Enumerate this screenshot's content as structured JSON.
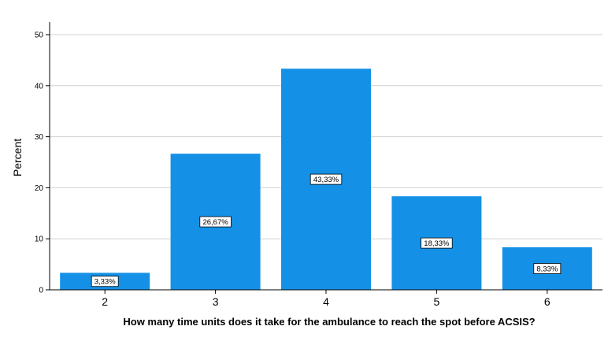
{
  "chart_data": {
    "type": "bar",
    "categories": [
      "2",
      "3",
      "4",
      "5",
      "6"
    ],
    "values": [
      3.33,
      26.67,
      43.33,
      18.33,
      8.33
    ],
    "data_labels": [
      "3,33%",
      "26,67%",
      "43,33%",
      "18,33%",
      "8,33%"
    ],
    "title": "",
    "xlabel": "How many time units does it take for the ambulance to reach the spot before ACSIS?",
    "ylabel": "Percent",
    "ylim": [
      0,
      50
    ],
    "yticks": [
      0,
      10,
      20,
      30,
      40,
      50
    ],
    "ytick_labels": [
      "0",
      "10",
      "20",
      "30",
      "40",
      "50"
    ],
    "grid": "horizontal",
    "legend": "none",
    "bar_color": "#1491E6",
    "grid_color": "#D0D0D0",
    "axis_color": "#000000"
  }
}
